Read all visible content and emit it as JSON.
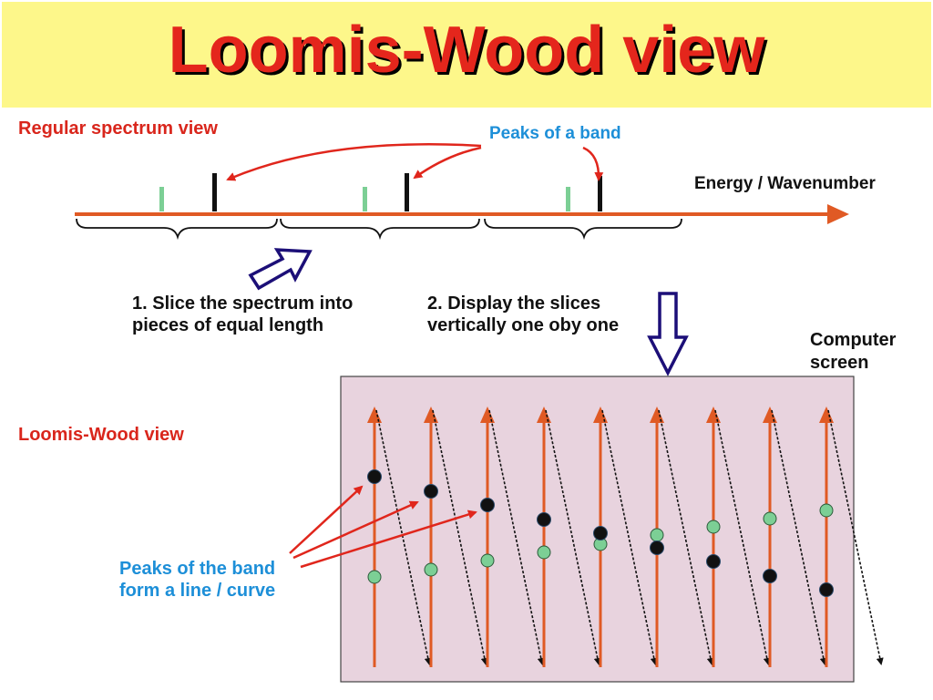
{
  "title": "Loomis-Wood view",
  "regular_heading": "Regular spectrum view",
  "peaks_label": "Peaks of a band",
  "axis_label": "Energy / Wavenumber",
  "step1": [
    "1. Slice the spectrum into",
    "pieces of equal length"
  ],
  "step2": [
    "2. Display the slices",
    "vertically one oby one"
  ],
  "screen_label": [
    "Computer",
    "screen"
  ],
  "lw_heading": "Loomis-Wood view",
  "band_label": [
    "Peaks of the band",
    "form a line / curve"
  ],
  "colors": {
    "title": "#e4261c",
    "title_band": "#fdf78a",
    "axis": "#e05a24",
    "screen_bg": "#e8d3de",
    "green_peak": "#7ccf95",
    "band_peak": "#111111",
    "outline_arrow": "#1c0f78",
    "blue_text": "#1d8fd8"
  }
}
